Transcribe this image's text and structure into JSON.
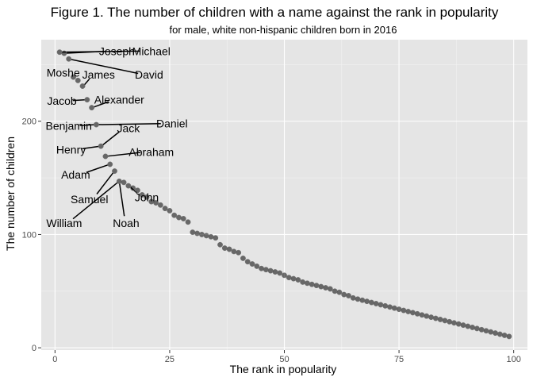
{
  "chart_data": {
    "type": "scatter",
    "title": "Figure 1. The number of children with a name against the rank in popularity",
    "subtitle": "for male, white non-hispanic children born in 2016",
    "xlabel": "The rank in popularity",
    "ylabel": "The number of children",
    "xlim": [
      -3,
      103
    ],
    "ylim": [
      -2,
      272
    ],
    "x_ticks": [
      0,
      25,
      50,
      75,
      100
    ],
    "y_ticks": [
      0,
      100,
      200
    ],
    "grid": true,
    "points": [
      {
        "x": 1,
        "y": 261
      },
      {
        "x": 2,
        "y": 260
      },
      {
        "x": 3,
        "y": 255
      },
      {
        "x": 4,
        "y": 239
      },
      {
        "x": 5,
        "y": 236
      },
      {
        "x": 6,
        "y": 231
      },
      {
        "x": 7,
        "y": 219
      },
      {
        "x": 8,
        "y": 212
      },
      {
        "x": 9,
        "y": 197
      },
      {
        "x": 10,
        "y": 178
      },
      {
        "x": 11,
        "y": 169
      },
      {
        "x": 12,
        "y": 162
      },
      {
        "x": 13,
        "y": 156
      },
      {
        "x": 14,
        "y": 147
      },
      {
        "x": 15,
        "y": 146
      },
      {
        "x": 16,
        "y": 143
      },
      {
        "x": 17,
        "y": 141
      },
      {
        "x": 18,
        "y": 139
      },
      {
        "x": 19,
        "y": 135
      },
      {
        "x": 20,
        "y": 133
      },
      {
        "x": 21,
        "y": 129
      },
      {
        "x": 22,
        "y": 128
      },
      {
        "x": 23,
        "y": 126
      },
      {
        "x": 24,
        "y": 123
      },
      {
        "x": 25,
        "y": 121
      },
      {
        "x": 26,
        "y": 117
      },
      {
        "x": 27,
        "y": 115
      },
      {
        "x": 28,
        "y": 114
      },
      {
        "x": 29,
        "y": 111
      },
      {
        "x": 30,
        "y": 102
      },
      {
        "x": 31,
        "y": 101
      },
      {
        "x": 32,
        "y": 100
      },
      {
        "x": 33,
        "y": 99
      },
      {
        "x": 34,
        "y": 98
      },
      {
        "x": 35,
        "y": 97
      },
      {
        "x": 36,
        "y": 91
      },
      {
        "x": 37,
        "y": 88
      },
      {
        "x": 38,
        "y": 87
      },
      {
        "x": 39,
        "y": 85
      },
      {
        "x": 40,
        "y": 84
      },
      {
        "x": 41,
        "y": 79
      },
      {
        "x": 42,
        "y": 76
      },
      {
        "x": 43,
        "y": 74
      },
      {
        "x": 44,
        "y": 72
      },
      {
        "x": 45,
        "y": 70
      },
      {
        "x": 46,
        "y": 69
      },
      {
        "x": 47,
        "y": 68
      },
      {
        "x": 48,
        "y": 67
      },
      {
        "x": 49,
        "y": 66
      },
      {
        "x": 50,
        "y": 64
      },
      {
        "x": 51,
        "y": 62
      },
      {
        "x": 52,
        "y": 61
      },
      {
        "x": 53,
        "y": 60
      },
      {
        "x": 54,
        "y": 58
      },
      {
        "x": 55,
        "y": 57
      },
      {
        "x": 56,
        "y": 56
      },
      {
        "x": 57,
        "y": 55
      },
      {
        "x": 58,
        "y": 54
      },
      {
        "x": 59,
        "y": 53
      },
      {
        "x": 60,
        "y": 52
      },
      {
        "x": 61,
        "y": 50
      },
      {
        "x": 62,
        "y": 49
      },
      {
        "x": 63,
        "y": 47
      },
      {
        "x": 64,
        "y": 46
      },
      {
        "x": 65,
        "y": 44
      },
      {
        "x": 66,
        "y": 43
      },
      {
        "x": 67,
        "y": 42
      },
      {
        "x": 68,
        "y": 41
      },
      {
        "x": 69,
        "y": 40
      },
      {
        "x": 70,
        "y": 39
      },
      {
        "x": 71,
        "y": 38
      },
      {
        "x": 72,
        "y": 37
      },
      {
        "x": 73,
        "y": 36
      },
      {
        "x": 74,
        "y": 35
      },
      {
        "x": 75,
        "y": 34
      },
      {
        "x": 76,
        "y": 33
      },
      {
        "x": 77,
        "y": 32
      },
      {
        "x": 78,
        "y": 31
      },
      {
        "x": 79,
        "y": 30
      },
      {
        "x": 80,
        "y": 29
      },
      {
        "x": 81,
        "y": 28
      },
      {
        "x": 82,
        "y": 27
      },
      {
        "x": 83,
        "y": 26
      },
      {
        "x": 84,
        "y": 25
      },
      {
        "x": 85,
        "y": 24
      },
      {
        "x": 86,
        "y": 23
      },
      {
        "x": 87,
        "y": 22
      },
      {
        "x": 88,
        "y": 21
      },
      {
        "x": 89,
        "y": 20
      },
      {
        "x": 90,
        "y": 19
      },
      {
        "x": 91,
        "y": 18
      },
      {
        "x": 92,
        "y": 17
      },
      {
        "x": 93,
        "y": 16
      },
      {
        "x": 94,
        "y": 15
      },
      {
        "x": 95,
        "y": 14
      },
      {
        "x": 96,
        "y": 13
      },
      {
        "x": 97,
        "y": 12
      },
      {
        "x": 98,
        "y": 11
      },
      {
        "x": 99,
        "y": 10
      }
    ],
    "annotations": [
      {
        "name": "Michael",
        "rank": 1,
        "label_x": 21,
        "label_y": 262
      },
      {
        "name": "Joseph",
        "rank": 2,
        "label_x": 13.5,
        "label_y": 262
      },
      {
        "name": "David",
        "rank": 3,
        "label_x": 20.5,
        "label_y": 241
      },
      {
        "name": "Moshe",
        "rank": 4,
        "label_x": 1.8,
        "label_y": 243
      },
      {
        "name": "James",
        "rank": 6,
        "label_x": 9.5,
        "label_y": 241
      },
      {
        "name": "Jacob",
        "rank": 7,
        "label_x": 1.5,
        "label_y": 218
      },
      {
        "name": "Alexander",
        "rank": 8,
        "label_x": 14,
        "label_y": 219
      },
      {
        "name": "Daniel",
        "rank": 9,
        "label_x": 25.5,
        "label_y": 198
      },
      {
        "name": "Benjamin",
        "rank": 9,
        "label_x": 3,
        "label_y": 196
      },
      {
        "name": "Jack",
        "rank": 10,
        "label_x": 16,
        "label_y": 194
      },
      {
        "name": "Henry",
        "rank": 10,
        "label_x": 3.5,
        "label_y": 175
      },
      {
        "name": "Abraham",
        "rank": 11,
        "label_x": 21,
        "label_y": 173
      },
      {
        "name": "Adam",
        "rank": 12,
        "label_x": 4.5,
        "label_y": 153
      },
      {
        "name": "Samuel",
        "rank": 13,
        "label_x": 7.5,
        "label_y": 131
      },
      {
        "name": "John",
        "rank": 16,
        "label_x": 20,
        "label_y": 133
      },
      {
        "name": "Noah",
        "rank": 14,
        "label_x": 15.5,
        "label_y": 110
      },
      {
        "name": "William",
        "rank": 14,
        "label_x": 2,
        "label_y": 110
      }
    ]
  }
}
